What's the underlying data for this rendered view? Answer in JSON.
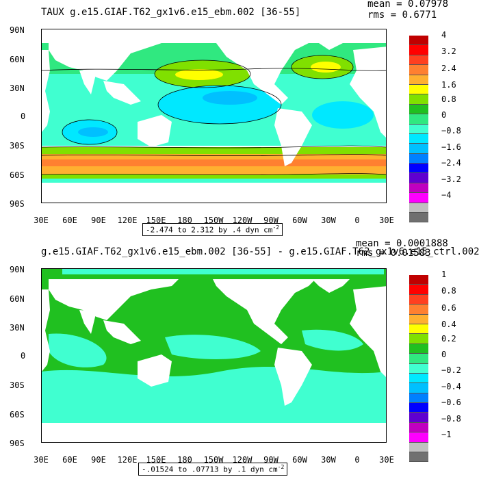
{
  "top": {
    "title": "TAUX g.e15.GIAF.T62_gx1v6.e15_ebm.002 [36-55]",
    "mean": "mean = 0.07978",
    "rms": "rms = 0.6771",
    "range_text": "-2.474 to 2.312 by .4 dyn cm",
    "range_exp": "-2",
    "colorbar_labels": [
      "4",
      "3.2",
      "2.4",
      "1.6",
      "0.8",
      "0",
      "−0.8",
      "−1.6",
      "−2.4",
      "−3.2",
      "−4"
    ]
  },
  "bottom": {
    "title": "g.e15.GIAF.T62_gx1v6.e15_ebm.002 [36-55] - g.e15.GIAF.T62_gx1v6.e15_ctrl.002",
    "mean": "mean = 0.0001888",
    "rms": "rms = 0.01583",
    "range_text": "-.01524 to .07713 by .1 dyn cm",
    "range_exp": "-2",
    "colorbar_labels": [
      "1",
      "0.8",
      "0.6",
      "0.4",
      "0.2",
      "0",
      "−0.2",
      "−0.4",
      "−0.6",
      "−0.8",
      "−1"
    ]
  },
  "lat_labels": [
    "90N",
    "60N",
    "30N",
    "0",
    "30S",
    "60S",
    "90S"
  ],
  "lon_labels": [
    "30E",
    "60E",
    "90E",
    "120E",
    "150E",
    "180",
    "150W",
    "120W",
    "90W",
    "60W",
    "30W",
    "0",
    "30E"
  ],
  "colorbar_colors": [
    "#c00000",
    "#ff0000",
    "#ff4020",
    "#ff8030",
    "#ffb030",
    "#ffff00",
    "#80e000",
    "#20c020",
    "#30e880",
    "#40ffd0",
    "#00e8ff",
    "#00c0ff",
    "#0080ff",
    "#0000ff",
    "#6000d0",
    "#c000c0",
    "#ff00ff",
    "#c0c0c0",
    "#707070"
  ]
}
